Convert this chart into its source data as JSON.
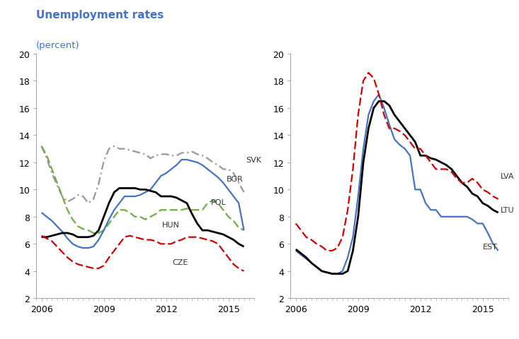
{
  "title": "Unemployment rates",
  "subtitle": "(percent)",
  "title_color": "#4472C4",
  "ylim": [
    2,
    20
  ],
  "yticks": [
    2,
    4,
    6,
    8,
    10,
    12,
    14,
    16,
    18,
    20
  ],
  "xlim": [
    2005.75,
    2016.25
  ],
  "xticks": [
    2006,
    2009,
    2012,
    2015
  ],
  "left_panel": {
    "SVK": {
      "color": "#999999",
      "linestyle": "-.",
      "linewidth": 1.6,
      "x": [
        2006.0,
        2006.25,
        2006.5,
        2006.75,
        2007.0,
        2007.25,
        2007.5,
        2007.75,
        2008.0,
        2008.25,
        2008.5,
        2008.75,
        2009.0,
        2009.25,
        2009.5,
        2009.75,
        2010.0,
        2010.25,
        2010.5,
        2010.75,
        2011.0,
        2011.25,
        2011.5,
        2011.75,
        2012.0,
        2012.25,
        2012.5,
        2012.75,
        2013.0,
        2013.25,
        2013.5,
        2013.75,
        2014.0,
        2014.25,
        2014.5,
        2014.75,
        2015.0,
        2015.25,
        2015.5,
        2015.75
      ],
      "y": [
        13.2,
        12.3,
        11.2,
        10.3,
        9.5,
        9.1,
        9.3,
        9.6,
        9.5,
        9.0,
        9.3,
        10.4,
        12.1,
        13.0,
        13.2,
        13.0,
        13.0,
        12.9,
        12.8,
        12.7,
        12.6,
        12.3,
        12.5,
        12.6,
        12.6,
        12.5,
        12.5,
        12.7,
        12.7,
        12.8,
        12.6,
        12.5,
        12.3,
        12.0,
        11.8,
        11.5,
        11.5,
        11.2,
        10.5,
        9.8
      ]
    },
    "BGR": {
      "color": "#4472C4",
      "linestyle": "-",
      "linewidth": 1.6,
      "x": [
        2006.0,
        2006.25,
        2006.5,
        2006.75,
        2007.0,
        2007.25,
        2007.5,
        2007.75,
        2008.0,
        2008.25,
        2008.5,
        2008.75,
        2009.0,
        2009.25,
        2009.5,
        2009.75,
        2010.0,
        2010.25,
        2010.5,
        2010.75,
        2011.0,
        2011.25,
        2011.5,
        2011.75,
        2012.0,
        2012.25,
        2012.5,
        2012.75,
        2013.0,
        2013.25,
        2013.5,
        2013.75,
        2014.0,
        2014.25,
        2014.5,
        2014.75,
        2015.0,
        2015.25,
        2015.5,
        2015.75
      ],
      "y": [
        8.3,
        8.0,
        7.7,
        7.3,
        6.9,
        6.4,
        6.0,
        5.8,
        5.7,
        5.7,
        5.8,
        6.3,
        7.0,
        7.8,
        8.5,
        9.0,
        9.5,
        9.5,
        9.5,
        9.6,
        9.8,
        10.0,
        10.5,
        11.0,
        11.2,
        11.5,
        11.8,
        12.2,
        12.2,
        12.1,
        12.0,
        11.8,
        11.5,
        11.2,
        10.9,
        10.5,
        10.0,
        9.5,
        9.0,
        7.0
      ]
    },
    "HUN": {
      "color": "#000000",
      "linestyle": "-",
      "linewidth": 2.0,
      "x": [
        2006.0,
        2006.25,
        2006.5,
        2006.75,
        2007.0,
        2007.25,
        2007.5,
        2007.75,
        2008.0,
        2008.25,
        2008.5,
        2008.75,
        2009.0,
        2009.25,
        2009.5,
        2009.75,
        2010.0,
        2010.25,
        2010.5,
        2010.75,
        2011.0,
        2011.25,
        2011.5,
        2011.75,
        2012.0,
        2012.25,
        2012.5,
        2012.75,
        2013.0,
        2013.25,
        2013.5,
        2013.75,
        2014.0,
        2014.25,
        2014.5,
        2014.75,
        2015.0,
        2015.25,
        2015.5,
        2015.75
      ],
      "y": [
        6.5,
        6.5,
        6.6,
        6.7,
        6.8,
        6.8,
        6.7,
        6.5,
        6.5,
        6.5,
        6.6,
        7.0,
        8.0,
        9.0,
        9.8,
        10.1,
        10.1,
        10.1,
        10.1,
        10.0,
        10.0,
        9.9,
        9.8,
        9.5,
        9.5,
        9.5,
        9.4,
        9.2,
        9.0,
        8.2,
        7.5,
        7.0,
        7.0,
        6.9,
        6.8,
        6.7,
        6.5,
        6.3,
        6.0,
        5.8
      ]
    },
    "POL": {
      "color": "#70AD47",
      "linestyle": "--",
      "linewidth": 1.6,
      "x": [
        2006.0,
        2006.25,
        2006.5,
        2006.75,
        2007.0,
        2007.25,
        2007.5,
        2007.75,
        2008.0,
        2008.25,
        2008.5,
        2008.75,
        2009.0,
        2009.25,
        2009.5,
        2009.75,
        2010.0,
        2010.25,
        2010.5,
        2010.75,
        2011.0,
        2011.25,
        2011.5,
        2011.75,
        2012.0,
        2012.25,
        2012.5,
        2012.75,
        2013.0,
        2013.25,
        2013.5,
        2013.75,
        2014.0,
        2014.25,
        2014.5,
        2014.75,
        2015.0,
        2015.25,
        2015.5,
        2015.75
      ],
      "y": [
        13.2,
        12.5,
        11.5,
        10.5,
        9.5,
        8.5,
        7.8,
        7.3,
        7.1,
        7.0,
        6.8,
        6.8,
        7.0,
        7.5,
        8.0,
        8.5,
        8.5,
        8.3,
        8.0,
        8.0,
        7.8,
        8.0,
        8.2,
        8.5,
        8.5,
        8.5,
        8.5,
        8.5,
        8.6,
        8.5,
        8.5,
        8.5,
        9.0,
        9.2,
        9.0,
        8.5,
        8.0,
        7.7,
        7.2,
        7.0
      ]
    },
    "CZE": {
      "color": "#CC0000",
      "linestyle": "--",
      "linewidth": 1.6,
      "x": [
        2006.0,
        2006.25,
        2006.5,
        2006.75,
        2007.0,
        2007.25,
        2007.5,
        2007.75,
        2008.0,
        2008.25,
        2008.5,
        2008.75,
        2009.0,
        2009.25,
        2009.5,
        2009.75,
        2010.0,
        2010.25,
        2010.5,
        2010.75,
        2011.0,
        2011.25,
        2011.5,
        2011.75,
        2012.0,
        2012.25,
        2012.5,
        2012.75,
        2013.0,
        2013.25,
        2013.5,
        2013.75,
        2014.0,
        2014.25,
        2014.5,
        2014.75,
        2015.0,
        2015.25,
        2015.5,
        2015.75
      ],
      "y": [
        6.6,
        6.4,
        6.2,
        5.8,
        5.4,
        5.0,
        4.7,
        4.5,
        4.4,
        4.3,
        4.2,
        4.2,
        4.4,
        5.0,
        5.5,
        6.0,
        6.5,
        6.6,
        6.5,
        6.4,
        6.3,
        6.3,
        6.2,
        6.0,
        6.0,
        6.0,
        6.2,
        6.3,
        6.5,
        6.5,
        6.5,
        6.4,
        6.3,
        6.2,
        6.0,
        5.5,
        5.0,
        4.5,
        4.2,
        4.0
      ]
    }
  },
  "right_panel": {
    "LVA": {
      "color": "#CC0000",
      "linestyle": "--",
      "linewidth": 1.6,
      "x": [
        2006.0,
        2006.25,
        2006.5,
        2006.75,
        2007.0,
        2007.25,
        2007.5,
        2007.75,
        2008.0,
        2008.25,
        2008.5,
        2008.75,
        2009.0,
        2009.25,
        2009.5,
        2009.75,
        2010.0,
        2010.25,
        2010.5,
        2010.75,
        2011.0,
        2011.25,
        2011.5,
        2011.75,
        2012.0,
        2012.25,
        2012.5,
        2012.75,
        2013.0,
        2013.25,
        2013.5,
        2013.75,
        2014.0,
        2014.25,
        2014.5,
        2014.75,
        2015.0,
        2015.25,
        2015.5,
        2015.75
      ],
      "y": [
        7.5,
        7.0,
        6.5,
        6.3,
        6.0,
        5.8,
        5.5,
        5.5,
        5.7,
        6.5,
        8.5,
        11.5,
        15.5,
        18.0,
        18.6,
        18.2,
        17.0,
        15.5,
        14.5,
        14.5,
        14.3,
        14.0,
        13.5,
        13.0,
        13.0,
        12.5,
        12.0,
        11.5,
        11.5,
        11.5,
        11.3,
        10.8,
        10.5,
        10.5,
        10.8,
        10.5,
        10.0,
        9.8,
        9.5,
        9.3
      ]
    },
    "LTU": {
      "color": "#000000",
      "linestyle": "-",
      "linewidth": 2.0,
      "x": [
        2006.0,
        2006.25,
        2006.5,
        2006.75,
        2007.0,
        2007.25,
        2007.5,
        2007.75,
        2008.0,
        2008.25,
        2008.5,
        2008.75,
        2009.0,
        2009.25,
        2009.5,
        2009.75,
        2010.0,
        2010.25,
        2010.5,
        2010.75,
        2011.0,
        2011.25,
        2011.5,
        2011.75,
        2012.0,
        2012.25,
        2012.5,
        2012.75,
        2013.0,
        2013.25,
        2013.5,
        2013.75,
        2014.0,
        2014.25,
        2014.5,
        2014.75,
        2015.0,
        2015.25,
        2015.5,
        2015.75
      ],
      "y": [
        5.6,
        5.3,
        5.0,
        4.6,
        4.3,
        4.0,
        3.9,
        3.8,
        3.8,
        3.8,
        4.0,
        5.5,
        8.0,
        12.0,
        14.5,
        16.0,
        16.5,
        16.5,
        16.2,
        15.5,
        15.0,
        14.5,
        14.0,
        13.5,
        12.5,
        12.5,
        12.3,
        12.2,
        12.0,
        11.8,
        11.5,
        11.0,
        10.5,
        10.2,
        9.7,
        9.5,
        9.0,
        8.8,
        8.5,
        8.3
      ]
    },
    "EST": {
      "color": "#4472C4",
      "linestyle": "-",
      "linewidth": 1.6,
      "x": [
        2006.0,
        2006.25,
        2006.5,
        2006.75,
        2007.0,
        2007.25,
        2007.5,
        2007.75,
        2008.0,
        2008.25,
        2008.5,
        2008.75,
        2009.0,
        2009.25,
        2009.5,
        2009.75,
        2010.0,
        2010.25,
        2010.5,
        2010.75,
        2011.0,
        2011.25,
        2011.5,
        2011.75,
        2012.0,
        2012.25,
        2012.5,
        2012.75,
        2013.0,
        2013.25,
        2013.5,
        2013.75,
        2014.0,
        2014.25,
        2014.5,
        2014.75,
        2015.0,
        2015.25,
        2015.5,
        2015.75
      ],
      "y": [
        5.5,
        5.2,
        4.9,
        4.6,
        4.3,
        4.0,
        3.9,
        3.8,
        3.8,
        4.0,
        5.0,
        6.5,
        9.5,
        13.0,
        15.5,
        16.5,
        17.0,
        16.0,
        14.8,
        13.7,
        13.3,
        13.0,
        12.5,
        10.0,
        10.0,
        9.0,
        8.5,
        8.5,
        8.0,
        8.0,
        8.0,
        8.0,
        8.0,
        8.0,
        7.8,
        7.5,
        7.5,
        6.8,
        6.0,
        5.5
      ]
    }
  }
}
